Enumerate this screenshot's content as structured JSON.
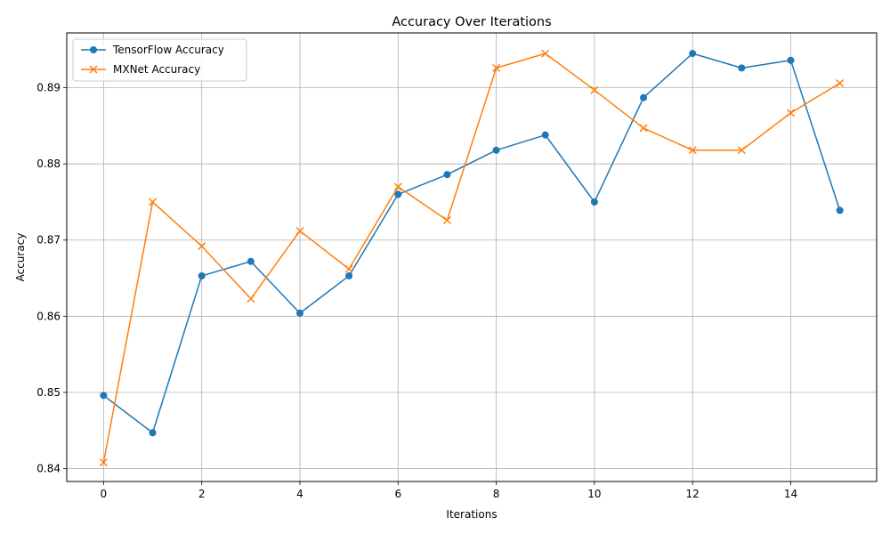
{
  "chart_data": {
    "type": "line",
    "title": "Accuracy Over Iterations",
    "xlabel": "Iterations",
    "ylabel": "Accuracy",
    "xlim": [
      -0.75,
      15.75
    ],
    "ylim": [
      0.8383,
      0.8972
    ],
    "xticks": [
      0,
      2,
      4,
      6,
      8,
      10,
      12,
      14
    ],
    "yticks": [
      0.84,
      0.85,
      0.86,
      0.87,
      0.88,
      0.89
    ],
    "grid": true,
    "legend_position": "upper-left",
    "x": [
      0,
      1,
      2,
      3,
      4,
      5,
      6,
      7,
      8,
      9,
      10,
      11,
      12,
      13,
      14,
      15
    ],
    "series": [
      {
        "name": "TensorFlow Accuracy",
        "color": "#1f77b4",
        "marker": "circle",
        "values": [
          0.8496,
          0.8447,
          0.8653,
          0.8672,
          0.8604,
          0.8653,
          0.876,
          0.8786,
          0.8818,
          0.8838,
          0.875,
          0.8887,
          0.8945,
          0.8926,
          0.8936,
          0.8739
        ]
      },
      {
        "name": "MXNet Accuracy",
        "color": "#ff7f0e",
        "marker": "x",
        "values": [
          0.8408,
          0.875,
          0.8692,
          0.8623,
          0.8712,
          0.8662,
          0.877,
          0.8726,
          0.8926,
          0.8945,
          0.8897,
          0.8847,
          0.8818,
          0.8818,
          0.8867,
          0.8906
        ]
      }
    ]
  }
}
